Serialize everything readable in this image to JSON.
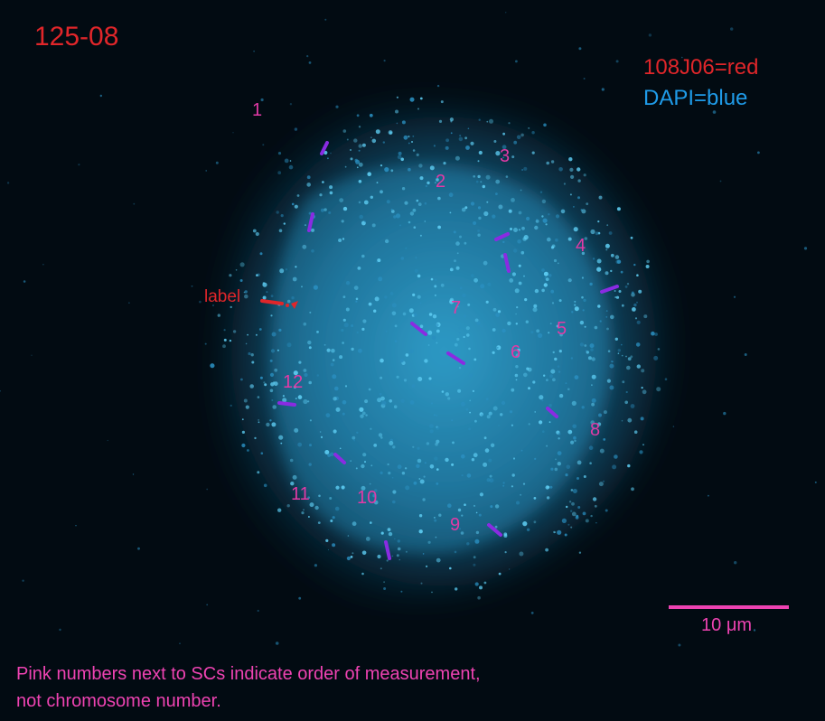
{
  "specimen_id": "125-08",
  "legend": {
    "probe": "108J06=red",
    "stain": "DAPI=blue",
    "probe_color": "#e0262a",
    "stain_color": "#1f9be8"
  },
  "probe_label": "label",
  "measurement_numbers": [
    "1",
    "2",
    "3",
    "4",
    "5",
    "6",
    "7",
    "8",
    "9",
    "10",
    "11",
    "12"
  ],
  "scale_bar": {
    "value": "10",
    "unit": "μm"
  },
  "footnote": {
    "line1": "Pink numbers next to SCs indicate order of measurement,",
    "line2": "not chromosome number."
  },
  "colors": {
    "background": "#020b12",
    "nucleus": "#2aa6d8",
    "measurement_text": "#e23aa6",
    "sc_marker": "#8a2be2"
  }
}
